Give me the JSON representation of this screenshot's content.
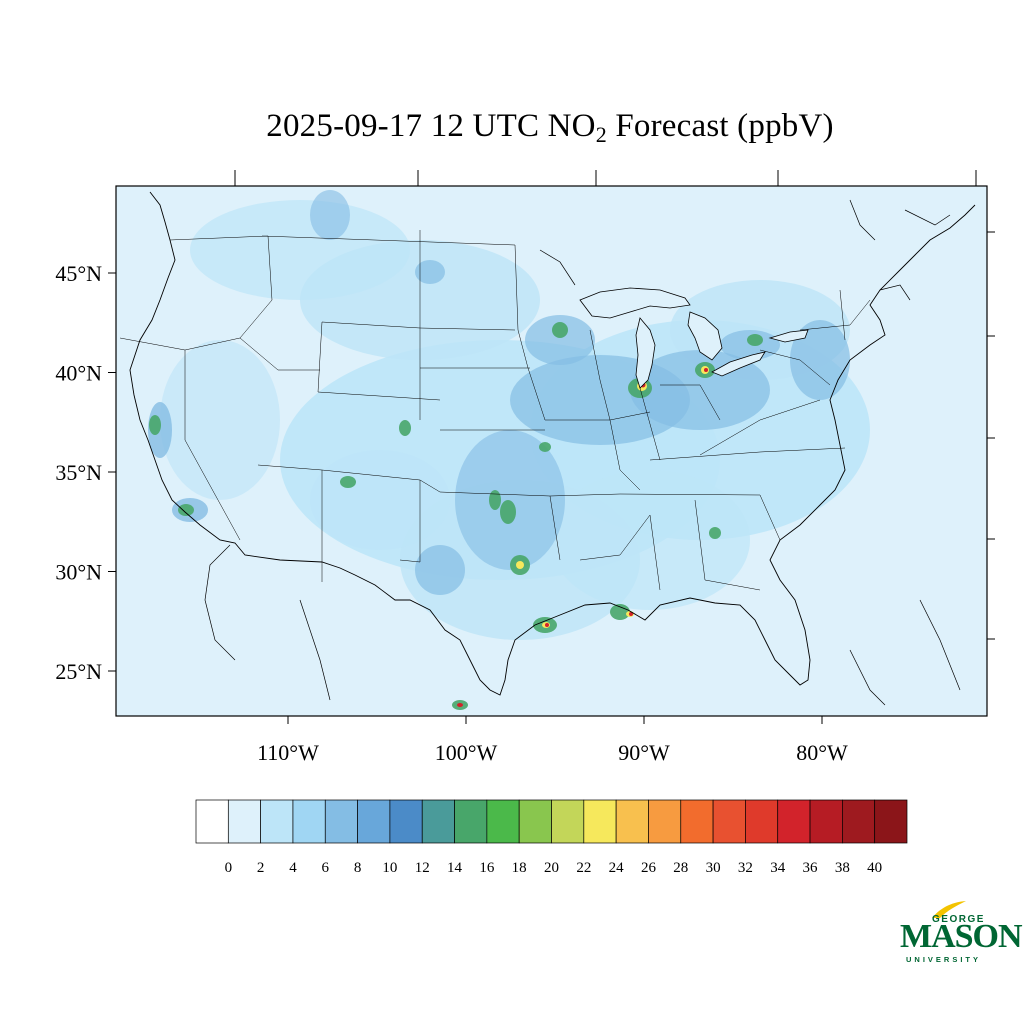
{
  "title": {
    "main": "2025-09-17 12 UTC NO",
    "sub": "2",
    "suffix": " Forecast (ppbV)"
  },
  "axes": {
    "lat_labels": [
      "45°N",
      "40°N",
      "35°N",
      "30°N",
      "25°N"
    ],
    "lat_values": [
      45,
      40,
      35,
      30,
      25
    ],
    "lon_labels": [
      "110°W",
      "100°W",
      "90°W",
      "80°W"
    ],
    "lon_values": [
      -110,
      -100,
      -90,
      -80
    ]
  },
  "colorbar": {
    "labels": [
      "0",
      "2",
      "4",
      "6",
      "8",
      "10",
      "12",
      "14",
      "16",
      "18",
      "20",
      "22",
      "24",
      "26",
      "28",
      "30",
      "32",
      "34",
      "36",
      "38",
      "40"
    ],
    "colors": [
      "#ffffff",
      "#def1fb",
      "#bde5f8",
      "#a0d6f3",
      "#84bde4",
      "#68a7da",
      "#4b8bc8",
      "#4a9b9a",
      "#48a66a",
      "#4bb94a",
      "#89c64e",
      "#c3d659",
      "#f6e85c",
      "#f8c04e",
      "#f79b40",
      "#f26c2d",
      "#e85130",
      "#df3a2b",
      "#d2232b",
      "#b61c24",
      "#9e1a1f",
      "#8b1519"
    ]
  },
  "logo": {
    "line1": "GEORGE",
    "line2": "MASON",
    "line3": "UNIVERSITY"
  },
  "colors": {
    "background_field": "#def1fb",
    "low": "#bde5f8",
    "mid": "#84bde4",
    "green": "#48a66a",
    "yellow": "#f6e85c",
    "red": "#d2232b",
    "brand_green": "#006633"
  }
}
